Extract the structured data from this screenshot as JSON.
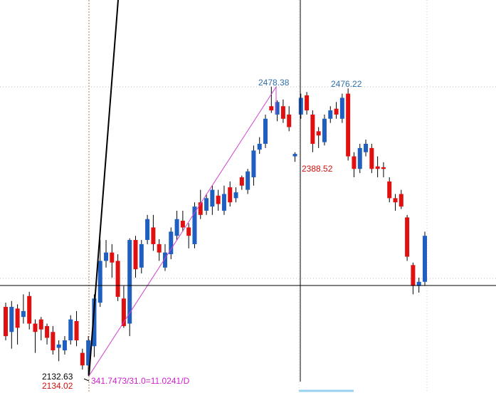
{
  "chart_data": {
    "type": "candlestick",
    "ylim": [
      2112,
      2582
    ],
    "up_color": "#1f5fbf",
    "down_color": "#e01010",
    "open": [
      2215,
      2185,
      2213,
      2203,
      2228,
      2195,
      2200,
      2192,
      2185,
      2166,
      2163,
      2175,
      2198,
      2160,
      2145,
      2168,
      2220,
      2270,
      2280,
      2270,
      2225,
      2195,
      2295,
      2262,
      2295,
      2310,
      2290,
      2262,
      2278,
      2300,
      2318,
      2310,
      2290,
      2340,
      2330,
      2335,
      2348,
      2330,
      2358,
      2345,
      2370,
      2355,
      2370,
      2403,
      2410,
      2455,
      2445,
      2455,
      2445,
      2395,
      2445,
      2468,
      2445,
      2425,
      2412,
      2440,
      2452,
      2440,
      2470,
      2395,
      2380,
      2400,
      2405,
      2383,
      2382,
      2365,
      2345,
      2350,
      2322,
      2265,
      2240,
      2245
    ],
    "high": [
      2220,
      2222,
      2218,
      2230,
      2233,
      2200,
      2203,
      2195,
      2192,
      2175,
      2180,
      2205,
      2210,
      2165,
      2180,
      2230,
      2295,
      2295,
      2290,
      2278,
      2240,
      2297,
      2300,
      2295,
      2325,
      2325,
      2296,
      2290,
      2310,
      2330,
      2330,
      2315,
      2340,
      2355,
      2350,
      2360,
      2355,
      2360,
      2365,
      2358,
      2372,
      2380,
      2408,
      2418,
      2445,
      2478.38,
      2462,
      2463,
      2455,
      2400,
      2470,
      2472,
      2450,
      2430,
      2445,
      2455,
      2460,
      2470,
      2476.22,
      2400,
      2410,
      2415,
      2410,
      2395,
      2388,
      2370,
      2350,
      2355,
      2325,
      2268,
      2250,
      2305
    ],
    "low": [
      2175,
      2165,
      2170,
      2195,
      2188,
      2160,
      2175,
      2170,
      2158,
      2150,
      2158,
      2170,
      2168,
      2140,
      2132.63,
      2155,
      2215,
      2262,
      2250,
      2222,
      2190,
      2180,
      2250,
      2255,
      2290,
      2282,
      2270,
      2258,
      2272,
      2295,
      2305,
      2285,
      2285,
      2320,
      2325,
      2325,
      2330,
      2325,
      2335,
      2340,
      2355,
      2350,
      2360,
      2398,
      2405,
      2447,
      2437,
      2435,
      2425,
      2388.52,
      2440,
      2445,
      2400,
      2405,
      2408,
      2435,
      2440,
      2435,
      2390,
      2370,
      2375,
      2395,
      2375,
      2370,
      2370,
      2340,
      2330,
      2332,
      2270,
      2230,
      2232,
      2240
    ],
    "close": [
      2180,
      2215,
      2190,
      2210,
      2195,
      2185,
      2188,
      2178,
      2163,
      2170,
      2175,
      2200,
      2175,
      2145,
      2175,
      2225,
      2270,
      2280,
      2268,
      2227,
      2192,
      2295,
      2260,
      2290,
      2320,
      2290,
      2280,
      2280,
      2305,
      2320,
      2310,
      2300,
      2335,
      2325,
      2345,
      2355,
      2338,
      2350,
      2340,
      2352,
      2360,
      2377,
      2402,
      2410,
      2440,
      2450,
      2460,
      2440,
      2430,
      2398,
      2465,
      2450,
      2410,
      2420,
      2440,
      2450,
      2445,
      2465,
      2395,
      2380,
      2405,
      2410,
      2380,
      2380,
      2380,
      2345,
      2340,
      2335,
      2275,
      2240,
      2245,
      2300
    ],
    "annotations": [
      {
        "text": "2478.38",
        "color": "#2e6fa8"
      },
      {
        "text": "2476.22",
        "color": "#2e6fa8"
      },
      {
        "text": "2388.52",
        "color": "#d01010"
      },
      {
        "text": "2132.63",
        "color": "#000000"
      },
      {
        "text": "2134.02",
        "color": "#d01010"
      },
      {
        "text": "341.7473/31.0=11.0241/D",
        "color": "#cc22cc"
      }
    ]
  }
}
